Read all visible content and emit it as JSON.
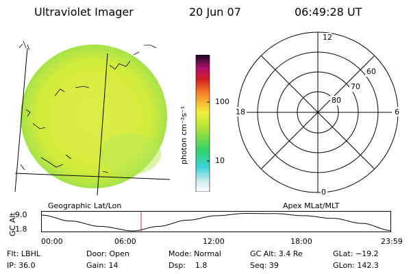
{
  "header": {
    "title": "Ultraviolet Imager",
    "date": "20 Jun 07",
    "time": "06:49:28 UT"
  },
  "colorbar": {
    "unit_label": "photon cm⁻²s⁻¹",
    "tick_labels": [
      "100",
      "10"
    ]
  },
  "left_panel": {
    "caption": "Geographic Lat/Lon"
  },
  "polar_plot": {
    "caption": "Apex MLat/MLT",
    "mlt_labels": [
      "12",
      "18",
      "6",
      "0"
    ],
    "lat_labels": [
      "60",
      "70",
      "80"
    ]
  },
  "altitude_strip": {
    "axis_label": "GC Alt",
    "y_ticks": [
      "9.0",
      "1.8"
    ],
    "x_ticks": [
      "00:00",
      "06:00",
      "12:00",
      "18:00",
      "23:59"
    ],
    "current_time_hours": 6.82
  },
  "footer": {
    "row1": {
      "flt": "Flt: LBHL",
      "door": "Door: Open",
      "mode": "Mode: Normal",
      "gcalt": "GC Alt: 3.4 Re",
      "glat": "GLat: −19.2"
    },
    "row2": {
      "ip": "IP: 36.0",
      "gain": "Gain: 14",
      "dsp": "Dsp:    1.8",
      "seq": "Seq: 39",
      "glon": "GLon: 142.3"
    }
  },
  "colors": {
    "image_fill": "#d8f03a",
    "image_edge": "#4fd37a",
    "strip_marker": "#c0392b"
  }
}
